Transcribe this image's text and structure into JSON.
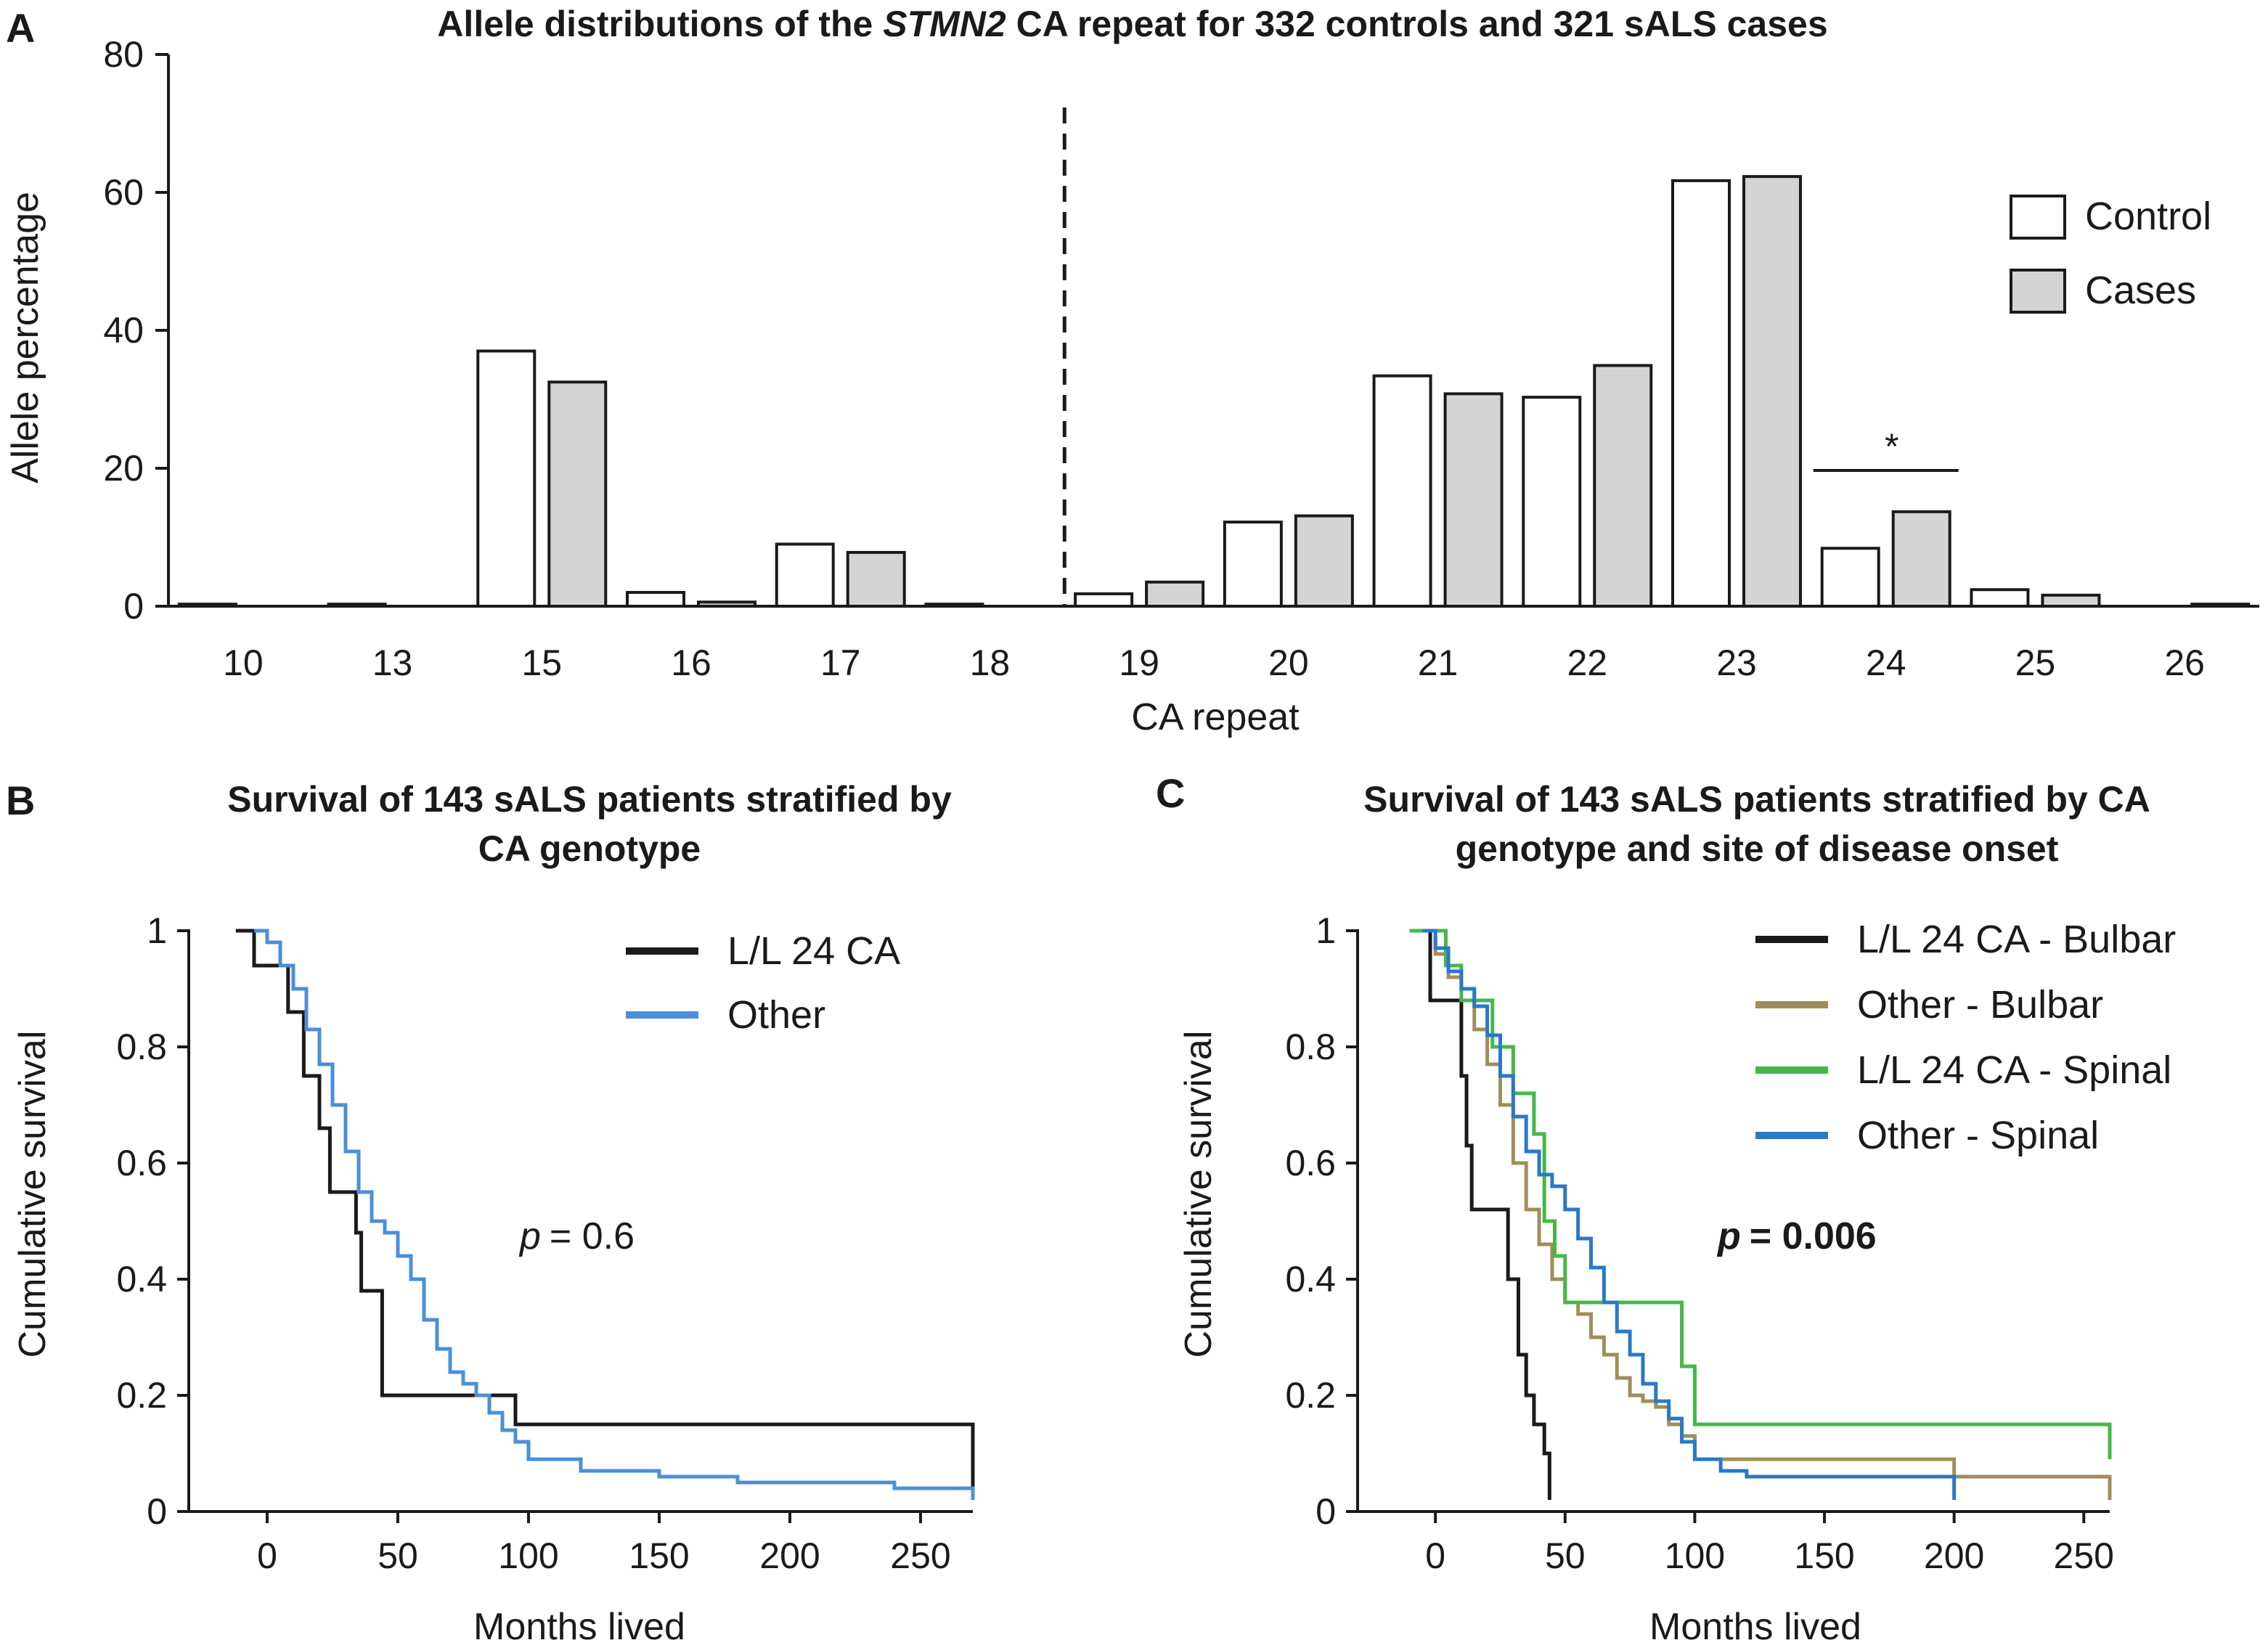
{
  "chart_data": [
    {
      "panel": "A",
      "type": "bar",
      "title_parts": [
        "Allele distributions of the ",
        "STMN2",
        " CA repeat for 332 controls and 321 sALS cases"
      ],
      "xlabel": "CA repeat",
      "ylabel": "Allele percentage",
      "ylim": [
        0,
        80
      ],
      "yticks": [
        "0",
        "20",
        "40",
        "60",
        "80"
      ],
      "categories": [
        "10",
        "13",
        "15",
        "16",
        "17",
        "18",
        "19",
        "20",
        "21",
        "22",
        "23",
        "24",
        "25",
        "26"
      ],
      "series": [
        {
          "name": "Control",
          "color": "#ffffff",
          "values": [
            0.3,
            0.3,
            37.0,
            2.0,
            9.0,
            0.3,
            1.8,
            12.2,
            33.4,
            30.3,
            61.7,
            8.4,
            2.4,
            0.0
          ]
        },
        {
          "name": "Cases",
          "color": "#d4d4d4",
          "values": [
            0.0,
            0.0,
            32.5,
            0.6,
            7.8,
            0.0,
            3.5,
            13.1,
            30.8,
            34.9,
            62.3,
            13.7,
            1.6,
            0.3
          ]
        }
      ],
      "significance": {
        "category": "24",
        "marker": "*"
      },
      "divider_after": "18",
      "legend": [
        "Control",
        "Cases"
      ]
    },
    {
      "panel": "B",
      "type": "line",
      "title_lines": [
        "Survival of 143 sALS patients stratified by",
        "CA genotype"
      ],
      "xlabel": "Months lived",
      "ylabel": "Cumulative survival",
      "xticks": [
        "0",
        "50",
        "100",
        "150",
        "200",
        "250"
      ],
      "yticks": [
        "0",
        "0.2",
        "0.4",
        "0.6",
        "0.8",
        "1"
      ],
      "xlim": [
        -30,
        270
      ],
      "ylim": [
        0,
        1
      ],
      "p_label": "p",
      "p_value": "= 0.6",
      "series": [
        {
          "name": "L/L 24 CA",
          "color": "#1a1a1a",
          "x": [
            -12,
            -5,
            5,
            8,
            14,
            20,
            24,
            30,
            34,
            36,
            44,
            80,
            95,
            270
          ],
          "y": [
            1,
            0.94,
            0.94,
            0.86,
            0.75,
            0.66,
            0.55,
            0.55,
            0.48,
            0.38,
            0.2,
            0.2,
            0.15,
            0.09
          ]
        },
        {
          "name": "Other",
          "color": "#4a8fd8",
          "x": [
            -5,
            0,
            5,
            10,
            15,
            20,
            25,
            30,
            35,
            40,
            45,
            50,
            55,
            60,
            65,
            70,
            75,
            80,
            85,
            90,
            95,
            100,
            120,
            150,
            180,
            210,
            240,
            270
          ],
          "y": [
            1,
            0.98,
            0.94,
            0.9,
            0.83,
            0.77,
            0.7,
            0.62,
            0.55,
            0.5,
            0.48,
            0.44,
            0.4,
            0.33,
            0.28,
            0.24,
            0.22,
            0.2,
            0.17,
            0.14,
            0.12,
            0.09,
            0.07,
            0.06,
            0.05,
            0.05,
            0.04,
            0.04
          ]
        }
      ],
      "legend": [
        "L/L 24 CA",
        "Other"
      ]
    },
    {
      "panel": "C",
      "type": "line",
      "title_lines": [
        "Survival of 143 sALS patients stratified by CA",
        "genotype and site of disease onset"
      ],
      "xlabel": "Months lived",
      "ylabel": "Cumulative survival",
      "xticks": [
        "0",
        "50",
        "100",
        "150",
        "200",
        "250"
      ],
      "yticks": [
        "0",
        "0.2",
        "0.4",
        "0.6",
        "0.8",
        "1"
      ],
      "xlim": [
        -30,
        260
      ],
      "ylim": [
        0,
        1
      ],
      "p_label": "p",
      "p_value": "= 0.006",
      "series": [
        {
          "name": "L/L 24 CA - Bulbar",
          "color": "#1a1a1a",
          "x": [
            -5,
            -2,
            8,
            10,
            12,
            14,
            28,
            32,
            35,
            38,
            42,
            44
          ],
          "y": [
            1,
            0.88,
            0.88,
            0.75,
            0.63,
            0.52,
            0.4,
            0.27,
            0.2,
            0.15,
            0.1,
            0.04
          ]
        },
        {
          "name": "Other - Bulbar",
          "color": "#a08e5a",
          "x": [
            -5,
            0,
            5,
            10,
            15,
            20,
            25,
            30,
            35,
            40,
            45,
            50,
            55,
            60,
            65,
            70,
            75,
            80,
            85,
            90,
            95,
            100,
            120,
            150,
            200,
            260
          ],
          "y": [
            1,
            0.96,
            0.92,
            0.9,
            0.83,
            0.77,
            0.7,
            0.6,
            0.52,
            0.46,
            0.4,
            0.36,
            0.34,
            0.3,
            0.27,
            0.23,
            0.2,
            0.19,
            0.18,
            0.15,
            0.13,
            0.09,
            0.09,
            0.09,
            0.06,
            0.06
          ]
        },
        {
          "name": "L/L 24 CA - Spinal",
          "color": "#45b848",
          "x": [
            -10,
            0,
            4,
            10,
            18,
            22,
            28,
            30,
            38,
            42,
            46,
            50,
            75,
            95,
            100,
            260
          ],
          "y": [
            1,
            1,
            0.94,
            0.88,
            0.88,
            0.8,
            0.8,
            0.72,
            0.65,
            0.5,
            0.44,
            0.36,
            0.36,
            0.25,
            0.15,
            0.14
          ]
        },
        {
          "name": "Other - Spinal",
          "color": "#2a78c8",
          "x": [
            -5,
            0,
            5,
            10,
            15,
            20,
            25,
            30,
            35,
            40,
            45,
            50,
            55,
            60,
            65,
            70,
            75,
            80,
            85,
            90,
            95,
            100,
            110,
            120,
            150,
            180,
            200
          ],
          "y": [
            1,
            0.97,
            0.93,
            0.9,
            0.87,
            0.82,
            0.75,
            0.68,
            0.62,
            0.58,
            0.56,
            0.52,
            0.47,
            0.42,
            0.36,
            0.31,
            0.27,
            0.22,
            0.19,
            0.16,
            0.12,
            0.09,
            0.07,
            0.06,
            0.06,
            0.06,
            0.05
          ]
        }
      ],
      "legend": [
        "L/L 24 CA - Bulbar",
        "Other - Bulbar",
        "L/L 24 CA - Spinal",
        "Other - Spinal"
      ]
    }
  ]
}
